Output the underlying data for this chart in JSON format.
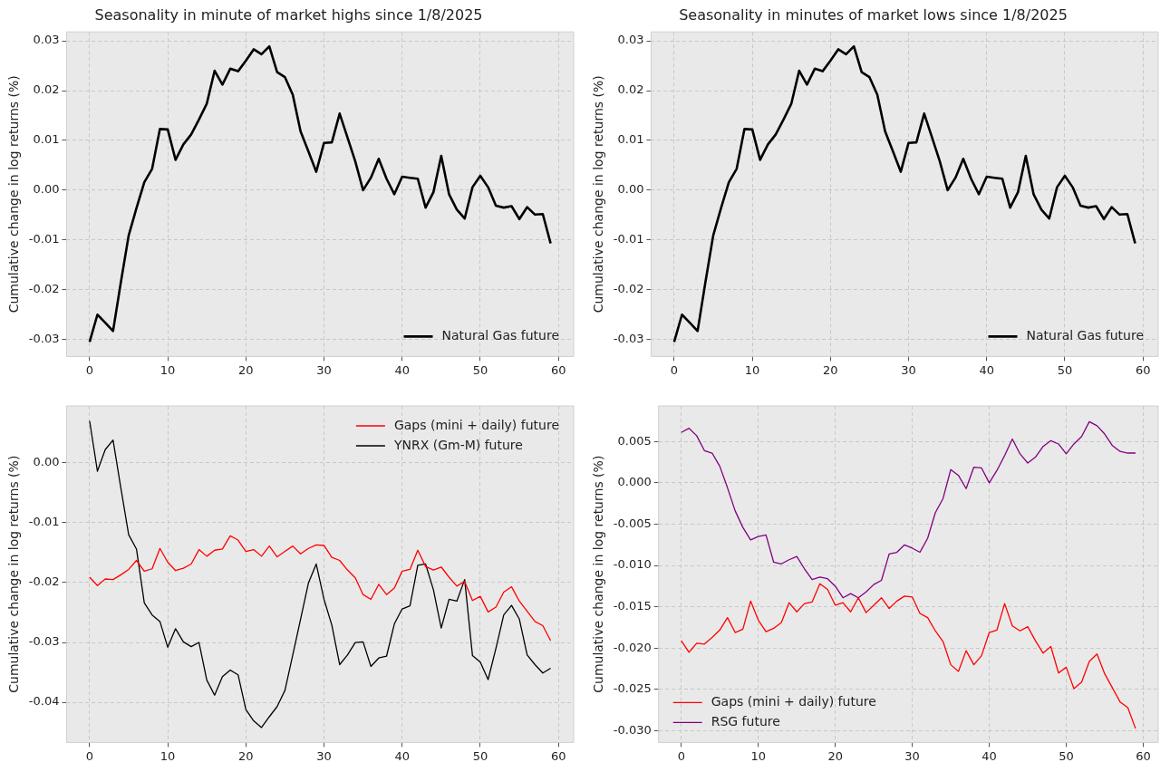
{
  "chart_data": [
    {
      "type": "line",
      "title": "Seasonality in minute of market highs since 1/8/2025",
      "ylabel": "Cumulative change in log returns (%)",
      "x": [
        0,
        1,
        2,
        3,
        4,
        5,
        6,
        7,
        8,
        9,
        10,
        11,
        12,
        13,
        14,
        15,
        16,
        17,
        18,
        19,
        20,
        21,
        22,
        23,
        24,
        25,
        26,
        27,
        28,
        29,
        30,
        31,
        32,
        33,
        34,
        35,
        36,
        37,
        38,
        39,
        40,
        41,
        42,
        43,
        44,
        45,
        46,
        47,
        48,
        49,
        50,
        51,
        52,
        53,
        54,
        55,
        56,
        57,
        58,
        59
      ],
      "series": [
        {
          "name": "Natural Gas future",
          "color": "#000000",
          "values": [
            -0.0305,
            -0.025,
            -0.0266,
            -0.0283,
            -0.0185,
            -0.0091,
            -0.0036,
            0.0016,
            0.0043,
            0.0123,
            0.0122,
            0.0061,
            0.0092,
            0.0112,
            0.0142,
            0.0174,
            0.024,
            0.0212,
            0.0244,
            0.0239,
            0.026,
            0.0283,
            0.0273,
            0.0289,
            0.0237,
            0.0227,
            0.0192,
            0.0118,
            0.0078,
            0.0037,
            0.0095,
            0.0096,
            0.0154,
            0.0106,
            0.0058,
            0.0,
            0.0025,
            0.0063,
            0.0023,
            -0.0008,
            0.0027,
            0.0025,
            0.0023,
            -0.0035,
            -0.0004,
            0.0069,
            -0.0008,
            -0.0039,
            -0.0057,
            0.0006,
            0.0029,
            0.0006,
            -0.0031,
            -0.0035,
            -0.0032,
            -0.0058,
            -0.0034,
            -0.0049,
            -0.0048,
            -0.0107
          ]
        }
      ],
      "xlim": [
        -2.95,
        61.95
      ],
      "xticks": [
        0,
        10,
        20,
        30,
        40,
        50,
        60
      ],
      "ylim": [
        -0.0334,
        0.0318
      ],
      "yticks": [
        {
          "value": -0.03,
          "label": "-0.03"
        },
        {
          "value": -0.02,
          "label": "-0.02"
        },
        {
          "value": -0.01,
          "label": "-0.01"
        },
        {
          "value": 0,
          "label": "0.00"
        },
        {
          "value": 0.01,
          "label": "0.01"
        },
        {
          "value": 0.02,
          "label": "0.02"
        },
        {
          "value": 0.03,
          "label": "0.03"
        }
      ],
      "grid": true,
      "legend": "bottom right"
    },
    {
      "type": "line",
      "title": "Seasonality in minutes of market lows since 1/8/2025",
      "ylabel": "Cumulative change in log returns (%)",
      "x": [
        0,
        1,
        2,
        3,
        4,
        5,
        6,
        7,
        8,
        9,
        10,
        11,
        12,
        13,
        14,
        15,
        16,
        17,
        18,
        19,
        20,
        21,
        22,
        23,
        24,
        25,
        26,
        27,
        28,
        29,
        30,
        31,
        32,
        33,
        34,
        35,
        36,
        37,
        38,
        39,
        40,
        41,
        42,
        43,
        44,
        45,
        46,
        47,
        48,
        49,
        50,
        51,
        52,
        53,
        54,
        55,
        56,
        57,
        58,
        59
      ],
      "series": [
        {
          "name": "Natural Gas future",
          "color": "#000000",
          "values": [
            -0.0305,
            -0.025,
            -0.0266,
            -0.0283,
            -0.0185,
            -0.0091,
            -0.0036,
            0.0016,
            0.0043,
            0.0123,
            0.0122,
            0.0061,
            0.0092,
            0.0112,
            0.0142,
            0.0174,
            0.024,
            0.0212,
            0.0244,
            0.0239,
            0.026,
            0.0283,
            0.0273,
            0.0289,
            0.0237,
            0.0227,
            0.0192,
            0.0118,
            0.0078,
            0.0037,
            0.0095,
            0.0096,
            0.0154,
            0.0106,
            0.0058,
            0.0,
            0.0025,
            0.0063,
            0.0023,
            -0.0008,
            0.0027,
            0.0025,
            0.0023,
            -0.0035,
            -0.0004,
            0.0069,
            -0.0008,
            -0.0039,
            -0.0057,
            0.0006,
            0.0029,
            0.0006,
            -0.0031,
            -0.0035,
            -0.0032,
            -0.0058,
            -0.0034,
            -0.0049,
            -0.0048,
            -0.0107
          ]
        }
      ],
      "xlim": [
        -2.95,
        61.95
      ],
      "xticks": [
        0,
        10,
        20,
        30,
        40,
        50,
        60
      ],
      "ylim": [
        -0.0334,
        0.0318
      ],
      "yticks": [
        {
          "value": -0.03,
          "label": "-0.03"
        },
        {
          "value": -0.02,
          "label": "-0.02"
        },
        {
          "value": -0.01,
          "label": "-0.01"
        },
        {
          "value": 0,
          "label": "0.00"
        },
        {
          "value": 0.01,
          "label": "0.01"
        },
        {
          "value": 0.02,
          "label": "0.02"
        },
        {
          "value": 0.03,
          "label": "0.03"
        }
      ],
      "grid": true,
      "legend": "bottom right"
    },
    {
      "type": "line",
      "ylabel": "Cumulative change in log returns (%)",
      "x": [
        0,
        1,
        2,
        3,
        4,
        5,
        6,
        7,
        8,
        9,
        10,
        11,
        12,
        13,
        14,
        15,
        16,
        17,
        18,
        19,
        20,
        21,
        22,
        23,
        24,
        25,
        26,
        27,
        28,
        29,
        30,
        31,
        32,
        33,
        34,
        35,
        36,
        37,
        38,
        39,
        40,
        41,
        42,
        43,
        44,
        45,
        46,
        47,
        48,
        49,
        50,
        51,
        52,
        53,
        54,
        55,
        56,
        57,
        58,
        59
      ],
      "series": [
        {
          "name": "Gaps (mini + daily) future",
          "color": "#ff0000",
          "values": [
            -0.0191,
            -0.0205,
            -0.0194,
            -0.0195,
            -0.0187,
            -0.0178,
            -0.0163,
            -0.0181,
            -0.0177,
            -0.0143,
            -0.0166,
            -0.018,
            -0.0176,
            -0.0169,
            -0.0145,
            -0.0156,
            -0.0146,
            -0.0144,
            -0.0122,
            -0.0129,
            -0.0148,
            -0.0145,
            -0.0156,
            -0.0139,
            -0.0157,
            -0.0148,
            -0.0139,
            -0.0152,
            -0.0143,
            -0.0137,
            -0.0138,
            -0.0158,
            -0.0163,
            -0.0179,
            -0.0192,
            -0.022,
            -0.0228,
            -0.0203,
            -0.022,
            -0.0209,
            -0.0181,
            -0.0178,
            -0.0146,
            -0.0173,
            -0.0179,
            -0.0174,
            -0.0191,
            -0.0206,
            -0.0198,
            -0.023,
            -0.0223,
            -0.0249,
            -0.0241,
            -0.0216,
            -0.0207,
            -0.0231,
            -0.0248,
            -0.0265,
            -0.0272,
            -0.0297
          ]
        },
        {
          "name": "YNRX (Gm-M) future",
          "color": "#000000",
          "values": [
            0.007,
            -0.0014,
            0.0022,
            0.0038,
            -0.0042,
            -0.012,
            -0.0144,
            -0.0234,
            -0.0254,
            -0.0265,
            -0.0308,
            -0.0277,
            -0.0299,
            -0.0307,
            -0.03,
            -0.0363,
            -0.0388,
            -0.0357,
            -0.0346,
            -0.0354,
            -0.0412,
            -0.0431,
            -0.0442,
            -0.0424,
            -0.0407,
            -0.038,
            -0.0321,
            -0.0261,
            -0.0201,
            -0.0169,
            -0.0228,
            -0.0271,
            -0.0337,
            -0.0321,
            -0.03,
            -0.0299,
            -0.034,
            -0.0326,
            -0.0323,
            -0.0269,
            -0.0244,
            -0.0239,
            -0.0171,
            -0.0169,
            -0.0212,
            -0.0276,
            -0.0228,
            -0.0231,
            -0.0195,
            -0.0322,
            -0.0333,
            -0.0362,
            -0.031,
            -0.0254,
            -0.0238,
            -0.0261,
            -0.0321,
            -0.0337,
            -0.0351,
            -0.0343
          ]
        }
      ],
      "xlim": [
        -2.95,
        61.95
      ],
      "xticks": [
        0,
        10,
        20,
        30,
        40,
        50,
        60
      ],
      "ylim": [
        -0.0467,
        0.0095
      ],
      "yticks": [
        {
          "value": -0.04,
          "label": "-0.04"
        },
        {
          "value": -0.03,
          "label": "-0.03"
        },
        {
          "value": -0.02,
          "label": "-0.02"
        },
        {
          "value": -0.01,
          "label": "-0.01"
        },
        {
          "value": 0,
          "label": "0.00"
        }
      ],
      "grid": true,
      "legend": "top right"
    },
    {
      "type": "line",
      "ylabel": "Cumulative change in log returns (%)",
      "x": [
        0,
        1,
        2,
        3,
        4,
        5,
        6,
        7,
        8,
        9,
        10,
        11,
        12,
        13,
        14,
        15,
        16,
        17,
        18,
        19,
        20,
        21,
        22,
        23,
        24,
        25,
        26,
        27,
        28,
        29,
        30,
        31,
        32,
        33,
        34,
        35,
        36,
        37,
        38,
        39,
        40,
        41,
        42,
        43,
        44,
        45,
        46,
        47,
        48,
        49,
        50,
        51,
        52,
        53,
        54,
        55,
        56,
        57,
        58,
        59
      ],
      "series": [
        {
          "name": "Gaps (mini + daily) future",
          "color": "#ff0000",
          "values": [
            -0.0191,
            -0.0205,
            -0.0194,
            -0.0195,
            -0.0187,
            -0.0178,
            -0.0163,
            -0.0181,
            -0.0177,
            -0.0143,
            -0.0166,
            -0.018,
            -0.0176,
            -0.0169,
            -0.0145,
            -0.0156,
            -0.0146,
            -0.0144,
            -0.0122,
            -0.0129,
            -0.0148,
            -0.0145,
            -0.0156,
            -0.0139,
            -0.0157,
            -0.0148,
            -0.0139,
            -0.0152,
            -0.0143,
            -0.0137,
            -0.0138,
            -0.0158,
            -0.0163,
            -0.0179,
            -0.0192,
            -0.022,
            -0.0228,
            -0.0203,
            -0.022,
            -0.0209,
            -0.0181,
            -0.0178,
            -0.0146,
            -0.0173,
            -0.0179,
            -0.0174,
            -0.0191,
            -0.0206,
            -0.0198,
            -0.023,
            -0.0223,
            -0.0249,
            -0.0241,
            -0.0216,
            -0.0207,
            -0.0231,
            -0.0248,
            -0.0265,
            -0.0272,
            -0.0297
          ]
        },
        {
          "name": "RSG future",
          "color": "#800080",
          "values": [
            0.0061,
            0.0066,
            0.0057,
            0.0039,
            0.0036,
            0.002,
            -0.0006,
            -0.0034,
            -0.0054,
            -0.0069,
            -0.0065,
            -0.0063,
            -0.0096,
            -0.0098,
            -0.0093,
            -0.0089,
            -0.0104,
            -0.0117,
            -0.0114,
            -0.0116,
            -0.0125,
            -0.0139,
            -0.0134,
            -0.0139,
            -0.0132,
            -0.0123,
            -0.0118,
            -0.0086,
            -0.0084,
            -0.0075,
            -0.0079,
            -0.0084,
            -0.0067,
            -0.0036,
            -0.0019,
            0.0016,
            0.0009,
            -0.0007,
            0.0019,
            0.0018,
            0.0,
            0.0015,
            0.0033,
            0.0053,
            0.0035,
            0.0024,
            0.0031,
            0.0044,
            0.0051,
            0.0047,
            0.0035,
            0.0047,
            0.0056,
            0.0074,
            0.0069,
            0.0059,
            0.0045,
            0.0038,
            0.0036,
            0.0036
          ]
        }
      ],
      "xlim": [
        -2.95,
        61.95
      ],
      "xticks": [
        0,
        10,
        20,
        30,
        40,
        50,
        60
      ],
      "ylim": [
        -0.0314,
        0.0093
      ],
      "yticks": [
        {
          "value": -0.03,
          "label": "-0.030"
        },
        {
          "value": -0.025,
          "label": "-0.025"
        },
        {
          "value": -0.02,
          "label": "-0.020"
        },
        {
          "value": -0.015,
          "label": "-0.015"
        },
        {
          "value": -0.01,
          "label": "-0.010"
        },
        {
          "value": -0.005,
          "label": "-0.005"
        },
        {
          "value": 0,
          "label": "0.000"
        },
        {
          "value": 0.005,
          "label": "0.005"
        }
      ],
      "grid": true,
      "legend": "bottom left"
    }
  ]
}
